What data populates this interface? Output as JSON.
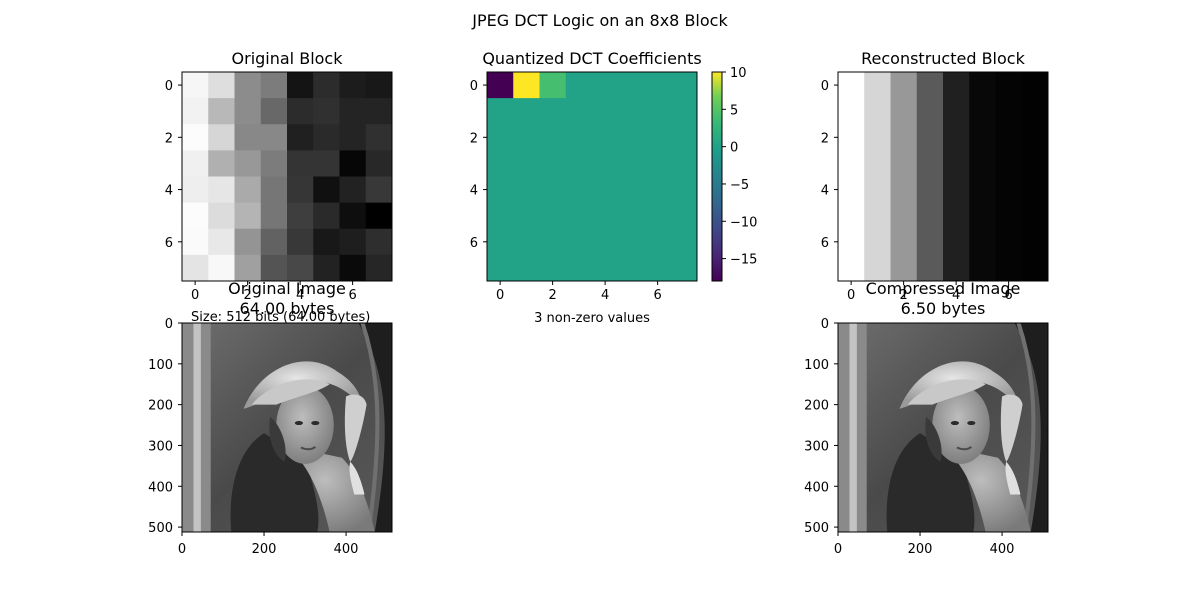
{
  "figure": {
    "suptitle": "JPEG DCT Logic on an 8x8 Block"
  },
  "chart_data": [
    {
      "type": "heatmap",
      "title": "Original Block",
      "colormap": "gray",
      "xticks": [
        "0",
        "2",
        "4",
        "6"
      ],
      "yticks": [
        "0",
        "2",
        "4",
        "6"
      ],
      "values": [
        [
          246,
          222,
          140,
          124,
          20,
          44,
          28,
          24
        ],
        [
          242,
          184,
          140,
          104,
          44,
          48,
          36,
          36
        ],
        [
          252,
          214,
          136,
          136,
          32,
          42,
          36,
          48
        ],
        [
          240,
          176,
          152,
          124,
          52,
          52,
          6,
          40
        ],
        [
          238,
          230,
          170,
          118,
          54,
          16,
          34,
          56
        ],
        [
          252,
          220,
          180,
          118,
          62,
          42,
          14,
          0
        ],
        [
          250,
          232,
          148,
          98,
          56,
          24,
          30,
          46
        ],
        [
          228,
          248,
          160,
          84,
          72,
          34,
          10,
          38
        ]
      ]
    },
    {
      "type": "heatmap",
      "title": "Quantized DCT Coefficients",
      "colormap": "viridis",
      "xticks": [
        "0",
        "2",
        "4",
        "6"
      ],
      "yticks": [
        "0",
        "2",
        "4",
        "6"
      ],
      "xlabel": "3 non-zero values",
      "vmin": -18,
      "vmax": 10,
      "colorbar_ticks": [
        "10",
        "5",
        "0",
        "−5",
        "−10",
        "−15"
      ],
      "values": [
        [
          -18,
          10,
          4,
          0,
          0,
          0,
          0,
          0
        ],
        [
          0,
          0,
          0,
          0,
          0,
          0,
          0,
          0
        ],
        [
          0,
          0,
          0,
          0,
          0,
          0,
          0,
          0
        ],
        [
          0,
          0,
          0,
          0,
          0,
          0,
          0,
          0
        ],
        [
          0,
          0,
          0,
          0,
          0,
          0,
          0,
          0
        ],
        [
          0,
          0,
          0,
          0,
          0,
          0,
          0,
          0
        ],
        [
          0,
          0,
          0,
          0,
          0,
          0,
          0,
          0
        ],
        [
          0,
          0,
          0,
          0,
          0,
          0,
          0,
          0
        ]
      ]
    },
    {
      "type": "heatmap",
      "title": "Reconstructed Block",
      "colormap": "gray",
      "xticks": [
        "0",
        "2",
        "4",
        "6"
      ],
      "yticks": [
        "0",
        "2",
        "4",
        "6"
      ],
      "column_values": [
        255,
        214,
        152,
        90,
        32,
        8,
        4,
        2
      ]
    },
    {
      "type": "image",
      "title_line1": "Original Image",
      "title_line2": "64.00 bytes",
      "annotation": "Size: 512 bits (64.00 bytes)",
      "xticks": [
        "0",
        "200",
        "400"
      ],
      "yticks": [
        "0",
        "100",
        "200",
        "300",
        "400",
        "500"
      ],
      "extent": [
        0,
        512
      ]
    },
    {
      "type": "image",
      "title_line1": "Compressed Image",
      "title_line2": "6.50 bytes",
      "xticks": [
        "0",
        "200",
        "400"
      ],
      "yticks": [
        "0",
        "100",
        "200",
        "300",
        "400",
        "500"
      ],
      "extent": [
        0,
        512
      ]
    }
  ]
}
